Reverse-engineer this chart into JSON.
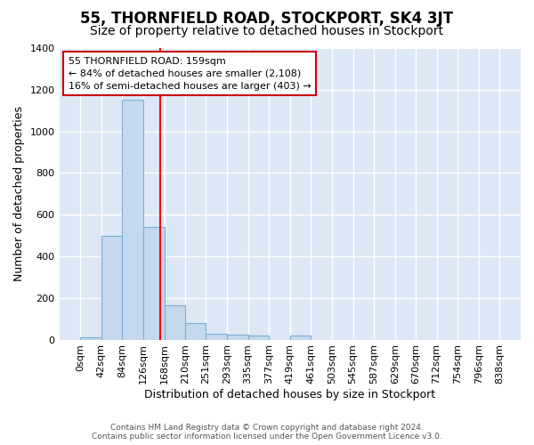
{
  "title": "55, THORNFIELD ROAD, STOCKPORT, SK4 3JT",
  "subtitle": "Size of property relative to detached houses in Stockport",
  "xlabel": "Distribution of detached houses by size in Stockport",
  "ylabel": "Number of detached properties",
  "bin_edges": [
    0,
    42,
    84,
    126,
    168,
    210,
    251,
    293,
    335,
    377,
    419,
    461,
    503,
    545,
    587,
    629,
    670,
    712,
    754,
    796,
    838
  ],
  "bar_heights": [
    10,
    500,
    1150,
    540,
    165,
    80,
    28,
    25,
    18,
    0,
    18,
    0,
    0,
    0,
    0,
    0,
    0,
    0,
    0,
    0
  ],
  "bar_color": "#c5d8ee",
  "bar_edgecolor": "#7aaed6",
  "red_line_x": 159,
  "annotation_text": "55 THORNFIELD ROAD: 159sqm\n← 84% of detached houses are smaller (2,108)\n16% of semi-detached houses are larger (403) →",
  "annotation_box_facecolor": "#ffffff",
  "annotation_box_edgecolor": "#cc0000",
  "ylim": [
    0,
    1400
  ],
  "yticks": [
    0,
    200,
    400,
    600,
    800,
    1000,
    1200,
    1400
  ],
  "background_color": "#dce8f5",
  "grid_color": "#ffffff",
  "title_fontsize": 12,
  "subtitle_fontsize": 10,
  "axis_label_fontsize": 9,
  "tick_fontsize": 8,
  "annotation_fontsize": 8,
  "footer_text": "Contains HM Land Registry data © Crown copyright and database right 2024.\nContains public sector information licensed under the Open Government Licence v3.0.",
  "figure_facecolor": "#ffffff"
}
